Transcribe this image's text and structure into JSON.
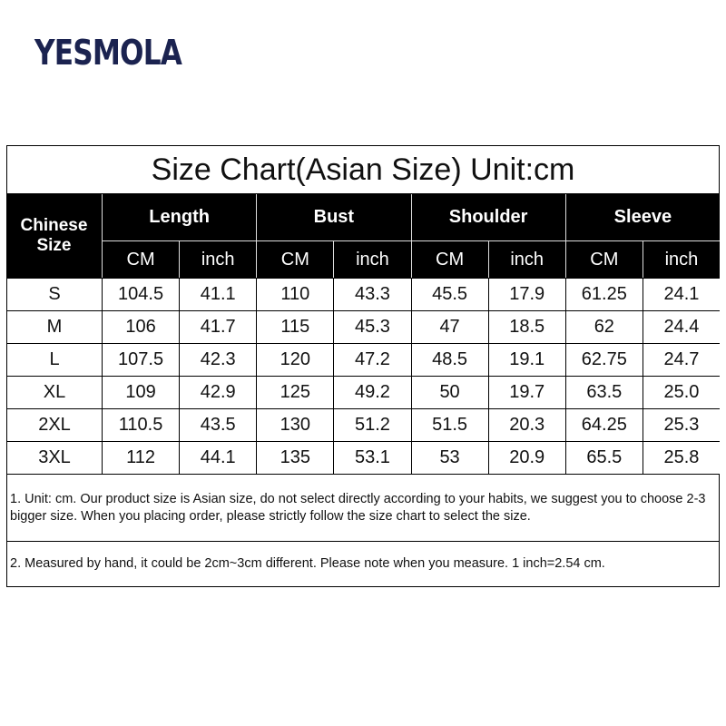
{
  "brand": "YESMOLA",
  "table": {
    "title": "Size Chart(Asian Size) Unit:cm",
    "size_header": "Chinese Size",
    "groups": [
      "Length",
      "Bust",
      "Shoulder",
      "Sleeve"
    ],
    "units": [
      "CM",
      "inch",
      "CM",
      "inch",
      "CM",
      "inch",
      "CM",
      "inch"
    ],
    "rows": [
      [
        "S",
        "104.5",
        "41.1",
        "110",
        "43.3",
        "45.5",
        "17.9",
        "61.25",
        "24.1"
      ],
      [
        "M",
        "106",
        "41.7",
        "115",
        "45.3",
        "47",
        "18.5",
        "62",
        "24.4"
      ],
      [
        "L",
        "107.5",
        "42.3",
        "120",
        "47.2",
        "48.5",
        "19.1",
        "62.75",
        "24.7"
      ],
      [
        "XL",
        "109",
        "42.9",
        "125",
        "49.2",
        "50",
        "19.7",
        "63.5",
        "25.0"
      ],
      [
        "2XL",
        "110.5",
        "43.5",
        "130",
        "51.2",
        "51.5",
        "20.3",
        "64.25",
        "25.3"
      ],
      [
        "3XL",
        "112",
        "44.1",
        "135",
        "53.1",
        "53",
        "20.9",
        "65.5",
        "25.8"
      ]
    ]
  },
  "notes": [
    "1. Unit: cm. Our product size is Asian size, do not select directly according to your habits, we suggest you to choose 2-3 bigger size. When you placing order, please strictly follow the size chart to select the size.",
    "2. Measured by hand, it could be 2cm~3cm different. Please note when you measure. 1 inch=2.54 cm."
  ]
}
